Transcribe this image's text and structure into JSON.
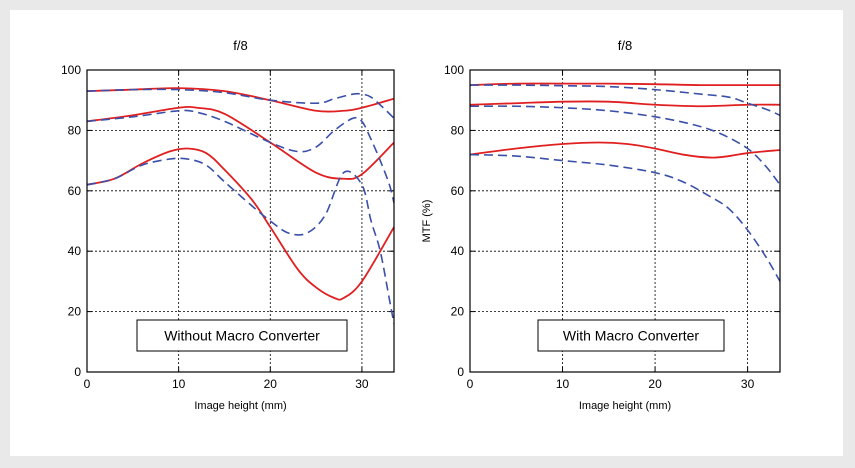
{
  "chart_data": [
    {
      "type": "line",
      "title": "f/8",
      "xlabel": "Image height (mm)",
      "ylabel": "",
      "xlim": [
        0,
        33.5
      ],
      "ylim": [
        0,
        100
      ],
      "xticks": [
        0,
        10,
        20,
        30
      ],
      "yticks": [
        0,
        20,
        40,
        60,
        80,
        100
      ],
      "grid": true,
      "annotation": "Without Macro Converter",
      "series": [
        {
          "color": "#e02020",
          "dash": false,
          "x": [
            0,
            5,
            10,
            15,
            20,
            25,
            28,
            30,
            33.5
          ],
          "y": [
            93,
            93.5,
            94,
            93,
            90,
            86.5,
            86.5,
            87.5,
            90.5
          ]
        },
        {
          "color": "#e02020",
          "dash": false,
          "x": [
            0,
            5,
            10,
            12,
            15,
            20,
            25,
            28,
            30,
            33.5
          ],
          "y": [
            83,
            85,
            87.5,
            87.5,
            85.5,
            76,
            66,
            64,
            65.5,
            76
          ]
        },
        {
          "color": "#e02020",
          "dash": false,
          "x": [
            0,
            3,
            6,
            9,
            11,
            13,
            15,
            18,
            20,
            23,
            25,
            27,
            28,
            30,
            33.5
          ],
          "y": [
            62,
            64,
            69,
            73,
            74,
            72.5,
            67,
            57,
            48,
            34,
            28,
            24.5,
            24.5,
            30,
            48
          ]
        },
        {
          "color": "#3a50a8",
          "dash": true,
          "x": [
            0,
            5,
            10,
            15,
            20,
            25,
            27,
            29,
            30,
            31,
            32.5,
            33.5
          ],
          "y": [
            93,
            93.5,
            93.5,
            92.5,
            90,
            89,
            90.5,
            92,
            92,
            91,
            87,
            84
          ]
        },
        {
          "color": "#3a50a8",
          "dash": true,
          "x": [
            0,
            5,
            10,
            12,
            15,
            20,
            23,
            25,
            27,
            29,
            30,
            31,
            32,
            33,
            33.5
          ],
          "y": [
            83,
            84.5,
            86.5,
            86,
            83,
            76,
            73,
            74.5,
            80,
            84,
            83,
            77,
            70,
            62,
            56
          ]
        },
        {
          "color": "#3a50a8",
          "dash": true,
          "x": [
            0,
            3,
            6,
            9,
            11,
            13,
            15,
            18,
            20,
            22,
            24,
            26,
            28,
            30,
            31,
            32,
            33,
            33.5
          ],
          "y": [
            62,
            64,
            68.5,
            70.5,
            70.5,
            68.5,
            63,
            55,
            50,
            46,
            46,
            52,
            66,
            62,
            50,
            40,
            24,
            16
          ]
        }
      ]
    },
    {
      "type": "line",
      "title": "f/8",
      "xlabel": "Image height (mm)",
      "ylabel": "MTF (%)",
      "xlim": [
        0,
        33.5
      ],
      "ylim": [
        0,
        100
      ],
      "xticks": [
        0,
        10,
        20,
        30
      ],
      "yticks": [
        0,
        20,
        40,
        60,
        80,
        100
      ],
      "grid": true,
      "annotation": "With Macro Converter",
      "series": [
        {
          "color": "#e02020",
          "dash": false,
          "x": [
            0,
            5,
            10,
            15,
            20,
            25,
            30,
            33.5
          ],
          "y": [
            95,
            95.5,
            95.5,
            95.5,
            95.3,
            95,
            95,
            95
          ]
        },
        {
          "color": "#e02020",
          "dash": false,
          "x": [
            0,
            5,
            10,
            15,
            20,
            25,
            30,
            33.5
          ],
          "y": [
            88.5,
            89,
            89.5,
            89.5,
            88.5,
            88,
            88.5,
            88.5
          ]
        },
        {
          "color": "#e02020",
          "dash": false,
          "x": [
            0,
            5,
            10,
            14,
            17,
            20,
            23,
            26,
            28,
            30,
            33.5
          ],
          "y": [
            72,
            74,
            75.5,
            76,
            75.5,
            74,
            72,
            71,
            71.5,
            72.5,
            73.5
          ]
        },
        {
          "color": "#3a50a8",
          "dash": true,
          "x": [
            0,
            5,
            10,
            15,
            20,
            25,
            28,
            30,
            32,
            33.5
          ],
          "y": [
            95,
            95,
            94.8,
            94.5,
            93.5,
            92,
            91,
            89,
            87,
            85
          ]
        },
        {
          "color": "#3a50a8",
          "dash": true,
          "x": [
            0,
            5,
            10,
            15,
            20,
            24,
            27,
            30,
            32,
            33.5
          ],
          "y": [
            88,
            88,
            87.5,
            86.5,
            84.5,
            82,
            79,
            74,
            68,
            62
          ]
        },
        {
          "color": "#3a50a8",
          "dash": true,
          "x": [
            0,
            5,
            10,
            15,
            20,
            23,
            26,
            28,
            30,
            32,
            33.5
          ],
          "y": [
            72,
            71.5,
            70,
            68.5,
            66,
            63,
            58,
            54,
            47,
            38,
            30
          ]
        }
      ]
    }
  ]
}
